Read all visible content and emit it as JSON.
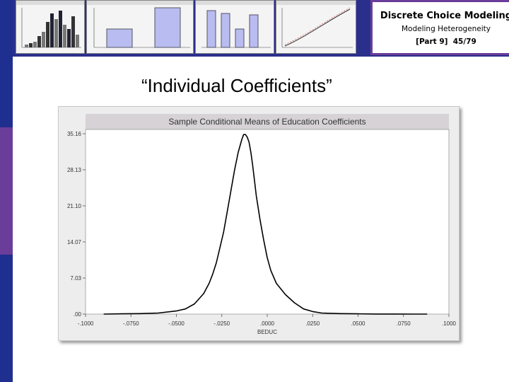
{
  "header": {
    "title": "Discrete Choice Modeling",
    "subtitle": "Modeling Heterogeneity",
    "part": "[Part 9]",
    "page": "45/79"
  },
  "slide": {
    "heading": "“Individual Coefficients”"
  },
  "colors": {
    "banner": "#2b2f8c",
    "accent": "#6a3d9a",
    "chart_title_bar": "#d6d2d6",
    "plot_bg": "#ffffff",
    "frame_bg": "#ededed"
  },
  "chart_data": {
    "type": "line",
    "title": "Sample Conditional Means of Education Coefficients",
    "xlabel": "BEDUC",
    "ylabel": "",
    "xlim": [
      -0.1,
      0.1
    ],
    "ylim": [
      0,
      35.16
    ],
    "xticks": [
      -0.1,
      -0.075,
      -0.05,
      -0.025,
      0.0,
      0.025,
      0.05,
      0.075,
      0.1
    ],
    "xtick_labels": [
      "-.1000",
      "-.0750",
      "-.0500",
      "-.0250",
      ".0000",
      ".0250",
      ".0500",
      ".0750",
      ".1000"
    ],
    "yticks": [
      0,
      7.03,
      14.07,
      21.1,
      28.13,
      35.16
    ],
    "ytick_labels": [
      ".00",
      "7.03",
      "14.07",
      "21.10",
      "28.13",
      "35.16"
    ],
    "grid": false,
    "series": [
      {
        "x": [
          -0.09,
          -0.08,
          -0.07,
          -0.06,
          -0.05,
          -0.045,
          -0.04,
          -0.035,
          -0.032,
          -0.03,
          -0.028,
          -0.026,
          -0.024,
          -0.022,
          -0.02,
          -0.018,
          -0.016,
          -0.014,
          -0.013,
          -0.012,
          -0.011,
          -0.01,
          -0.009,
          -0.008,
          -0.007,
          -0.006,
          -0.004,
          -0.002,
          0.0,
          0.002,
          0.005,
          0.01,
          0.015,
          0.02,
          0.025,
          0.03,
          0.04,
          0.05,
          0.06,
          0.07,
          0.08,
          0.088
        ],
        "y": [
          0.0,
          0.05,
          0.1,
          0.2,
          0.6,
          1.0,
          2.0,
          4.0,
          6.0,
          7.8,
          10.0,
          13.0,
          16.0,
          20.0,
          24.0,
          28.0,
          31.5,
          34.0,
          35.0,
          35.0,
          34.5,
          33.5,
          31.5,
          29.0,
          26.0,
          23.0,
          18.5,
          14.5,
          11.0,
          8.5,
          6.0,
          3.8,
          2.2,
          1.0,
          0.5,
          0.2,
          0.1,
          0.05,
          0.02,
          0.01,
          0.0,
          0.0
        ]
      }
    ]
  }
}
